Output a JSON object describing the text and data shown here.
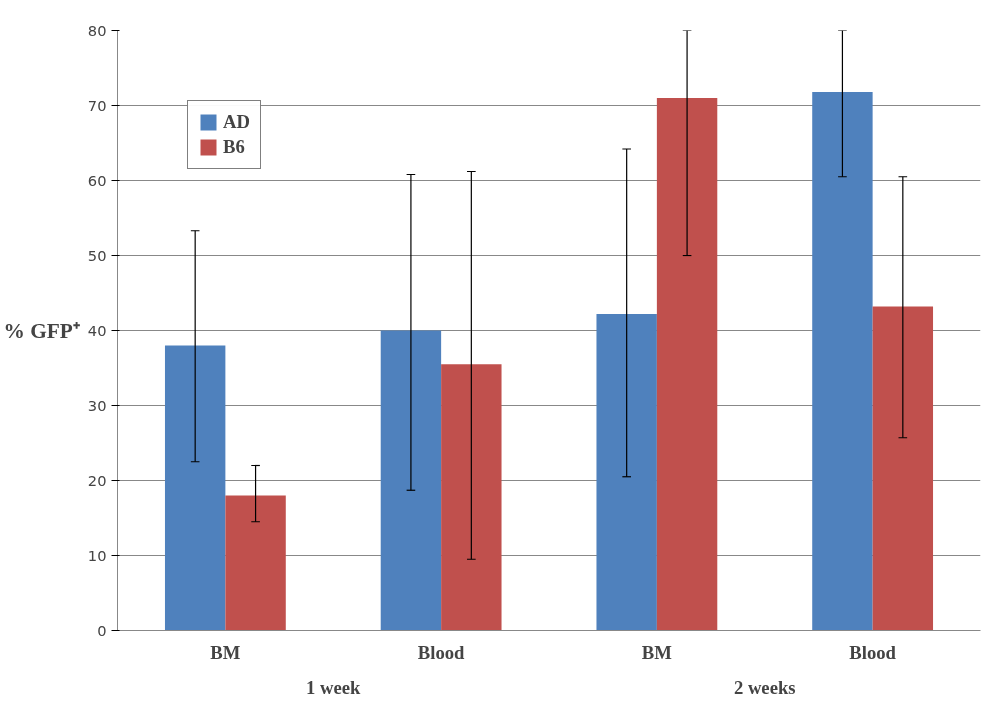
{
  "chart_data": {
    "type": "bar",
    "ylabel": "% GFP⁺",
    "categories": [
      "BM",
      "Blood",
      "BM",
      "Blood"
    ],
    "series": [
      {
        "name": "AD",
        "color": "#4f81bd",
        "values": [
          38,
          40,
          42.2,
          71.8
        ],
        "errors": [
          [
            22.5,
            53.3
          ],
          [
            18.7,
            60.8
          ],
          [
            20.5,
            64.2
          ],
          [
            60.5,
            80
          ]
        ]
      },
      {
        "name": "B6",
        "color": "#c0504d",
        "values": [
          18,
          35.5,
          71,
          43.2
        ],
        "errors": [
          [
            14.5,
            22
          ],
          [
            9.5,
            61.2
          ],
          [
            50,
            80
          ],
          [
            25.7,
            60.5
          ]
        ]
      }
    ],
    "annotations": [
      "1 week",
      "2 weeks"
    ],
    "ylim": [
      0,
      80
    ],
    "yticks": [
      0,
      10,
      20,
      30,
      40,
      50,
      60,
      70,
      80
    ],
    "grid": "y",
    "legend": "top left"
  }
}
